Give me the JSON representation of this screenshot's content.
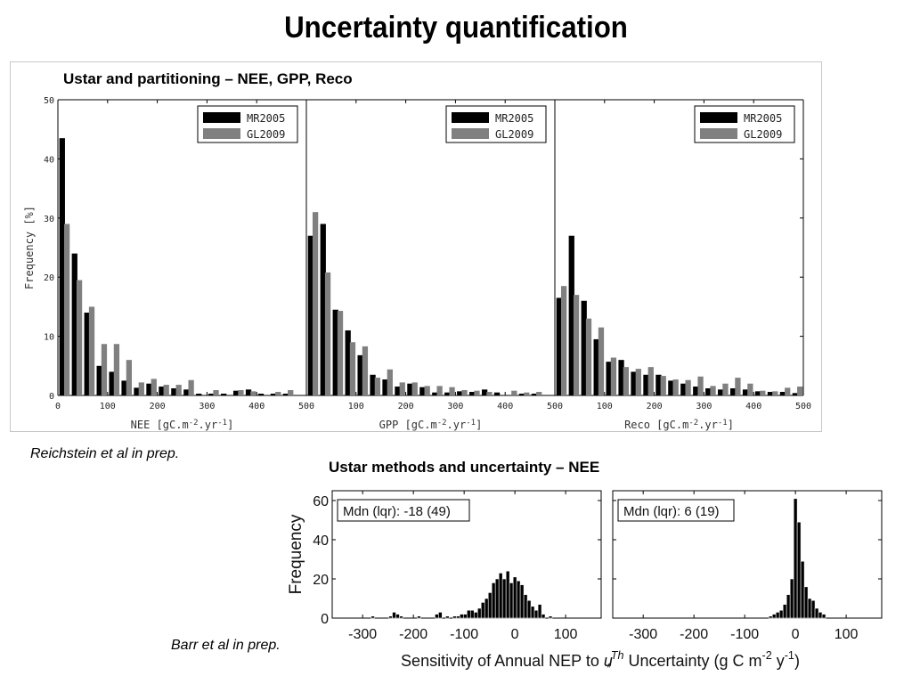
{
  "slide": {
    "title": "Uncertainty quantification",
    "top_heading": "Ustar and partitioning – NEE, GPP, Reco",
    "bottom_heading": "Ustar methods and uncertainty – NEE",
    "credit_top": "Reichstein et al in prep.",
    "credit_bottom": "Barr et al in prep."
  },
  "colors": {
    "series_black": "#000000",
    "series_gray": "#808080",
    "axis": "#000000",
    "frame": "#c8c8c8"
  },
  "chart_data": [
    {
      "type": "bar",
      "panels": [
        "NEE",
        "GPP",
        "Reco"
      ],
      "ylabel": "Frequency [%]",
      "xlabels": [
        "NEE [gC.m^-2.yr^-1]",
        "GPP [gC.m^-2.yr^-1]",
        "Reco [gC.m^-2.yr^-1]"
      ],
      "ylim": [
        0,
        50
      ],
      "yticks": [
        0,
        10,
        20,
        30,
        40,
        50
      ],
      "xlim": [
        0,
        500
      ],
      "xticks": [
        0,
        100,
        200,
        300,
        400,
        500
      ],
      "bin_width": 25,
      "bin_starts": [
        0,
        25,
        50,
        75,
        100,
        125,
        150,
        175,
        200,
        225,
        250,
        275,
        300,
        325,
        350,
        375,
        400,
        425,
        450,
        475
      ],
      "legend": [
        "MR2005",
        "GL2009"
      ],
      "legend_position": "top-right",
      "series": [
        {
          "name": "MR2005",
          "panel": "NEE",
          "values": [
            43.5,
            24,
            14,
            5,
            4,
            2.5,
            1.3,
            2,
            1.5,
            1.2,
            1,
            0.3,
            0.3,
            0.3,
            0.8,
            1,
            0.3,
            0.3,
            0.3,
            0
          ]
        },
        {
          "name": "GL2009",
          "panel": "NEE",
          "values": [
            29,
            19.5,
            15,
            8.7,
            8.7,
            6,
            2.2,
            2.8,
            1.8,
            1.8,
            2.6,
            0,
            0.9,
            0,
            0.9,
            0.7,
            0,
            0.6,
            0.9,
            0
          ]
        },
        {
          "name": "MR2005",
          "panel": "GPP",
          "values": [
            27,
            29,
            14.5,
            11,
            6.8,
            3.5,
            2.7,
            1.5,
            2,
            1.4,
            0.5,
            0.5,
            0.7,
            0.6,
            1,
            0.5,
            0,
            0.3,
            0.3,
            0
          ]
        },
        {
          "name": "GL2009",
          "panel": "GPP",
          "values": [
            31,
            20.8,
            14.3,
            9,
            8.3,
            3,
            4.4,
            2.2,
            2.2,
            1.6,
            1.6,
            1.4,
            0.9,
            0.8,
            0.6,
            0,
            0.8,
            0.5,
            0.6,
            0
          ]
        },
        {
          "name": "MR2005",
          "panel": "Reco",
          "values": [
            16.5,
            27,
            16,
            9.5,
            5.7,
            6,
            4,
            3.5,
            3.5,
            2.5,
            2,
            1.5,
            1.2,
            1,
            1.2,
            1,
            0.7,
            0.6,
            0.6,
            0.4
          ]
        },
        {
          "name": "GL2009",
          "panel": "Reco",
          "values": [
            18.5,
            17,
            13,
            11.5,
            6.4,
            4.8,
            4.5,
            4.8,
            3.3,
            2.7,
            2.6,
            3.2,
            1.6,
            2,
            3,
            2,
            0.8,
            0.7,
            1.3,
            1.5
          ]
        }
      ]
    },
    {
      "type": "bar",
      "panels": [
        "left",
        "right"
      ],
      "ylabel": "Frequency",
      "xlabel": "Sensitivity of Annual NEP to u*Th Uncertainty (g C m-2 y-1)",
      "ylim": [
        0,
        65
      ],
      "yticks": [
        0,
        20,
        40,
        60
      ],
      "xlim": [
        -360,
        170
      ],
      "xticks": [
        -300,
        -200,
        -100,
        0,
        100
      ],
      "bin_width": 7,
      "annotations": [
        "Mdn (lqr): -18 (49)",
        "Mdn (lqr): 6 (19)"
      ],
      "series": [
        {
          "panel": "left",
          "x": [
            -280,
            -245,
            -238,
            -231,
            -224,
            -189,
            -154,
            -147,
            -133,
            -119,
            -112,
            -105,
            -98,
            -91,
            -84,
            -77,
            -70,
            -63,
            -56,
            -49,
            -42,
            -35,
            -28,
            -21,
            -14,
            -7,
            0,
            7,
            14,
            21,
            28,
            35,
            42,
            49,
            56,
            70
          ],
          "values": [
            1,
            1,
            3,
            2,
            1,
            1,
            2,
            3,
            1,
            1,
            1,
            2,
            2,
            4,
            4,
            3,
            5,
            8,
            10,
            13,
            18,
            20,
            23,
            20,
            24,
            18,
            21,
            19,
            17,
            12,
            9,
            6,
            4,
            7,
            2,
            1
          ]
        },
        {
          "panel": "right",
          "x": [
            -49,
            -42,
            -35,
            -28,
            -21,
            -14,
            -7,
            0,
            7,
            14,
            21,
            28,
            35,
            42,
            49,
            56
          ],
          "values": [
            1,
            2,
            3,
            4,
            7,
            12,
            20,
            61,
            49,
            29,
            16,
            10,
            9,
            5,
            3,
            2
          ]
        }
      ]
    }
  ]
}
